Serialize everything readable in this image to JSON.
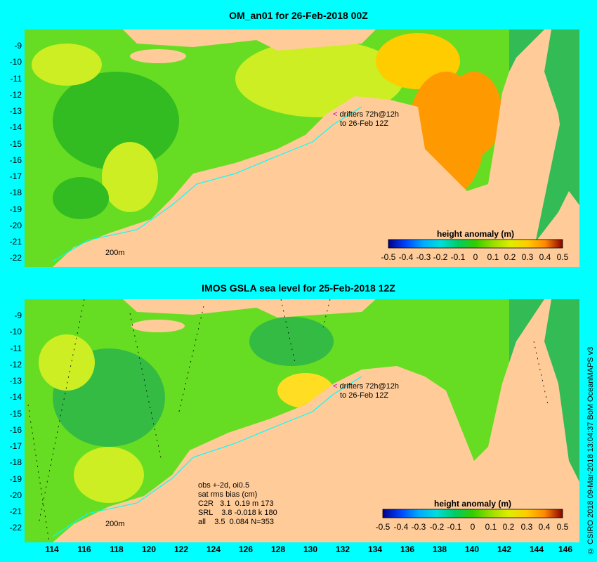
{
  "panels": [
    {
      "title": "OM_an01 for 26-Feb-2018 00Z",
      "annotation": {
        "arrow": "<",
        "line1": "drifters 72h@12h",
        "line2": "to 26-Feb 12Z"
      },
      "scale_label": "200m",
      "legend": {
        "title": "height anomaly (m)",
        "ticks": [
          "-0.5",
          "-0.4",
          "-0.3",
          "-0.2",
          "-0.1",
          "0",
          "0.1",
          "0.2",
          "0.3",
          "0.4",
          "0.5"
        ]
      }
    },
    {
      "title": "IMOS GSLA sea level  for 25-Feb-2018 12Z",
      "annotation": {
        "arrow": "<",
        "line1": "drifters 72h@12h",
        "line2": "to 26-Feb 12Z"
      },
      "scale_label": "200m",
      "stats": [
        "obs +-2d, oi0.5",
        "sat rms bias (cm)",
        "C2R   3.1  0.19 m 173",
        "SRL    3.8 -0.018 k 180",
        "all    3.5  0.084 N=353"
      ],
      "legend": {
        "title": "height anomaly (m)",
        "ticks": [
          "-0.5",
          "-0.4",
          "-0.3",
          "-0.2",
          "-0.1",
          "0",
          "0.1",
          "0.2",
          "0.3",
          "0.4",
          "0.5"
        ]
      }
    }
  ],
  "y_ticks": [
    "-9",
    "-10",
    "-11",
    "-12",
    "-13",
    "-14",
    "-15",
    "-16",
    "-17",
    "-18",
    "-19",
    "-20",
    "-21",
    "-22"
  ],
  "x_ticks": [
    "114",
    "116",
    "118",
    "120",
    "122",
    "124",
    "126",
    "128",
    "130",
    "132",
    "134",
    "136",
    "138",
    "140",
    "142",
    "144",
    "146"
  ],
  "credit": "© CSIRO 2018  09-Mar-2018 13:04:37 BoM OceanMAPS v3",
  "colors": {
    "background": "#00ffff",
    "land": "#ffcc99",
    "ocean_base": "#66dd22",
    "colorbar": [
      "#00008b",
      "#0044ff",
      "#00aaff",
      "#00dddd",
      "#00cc66",
      "#33cc00",
      "#99dd00",
      "#ddee00",
      "#ffcc00",
      "#ff8800",
      "#dd4400",
      "#880000"
    ]
  }
}
